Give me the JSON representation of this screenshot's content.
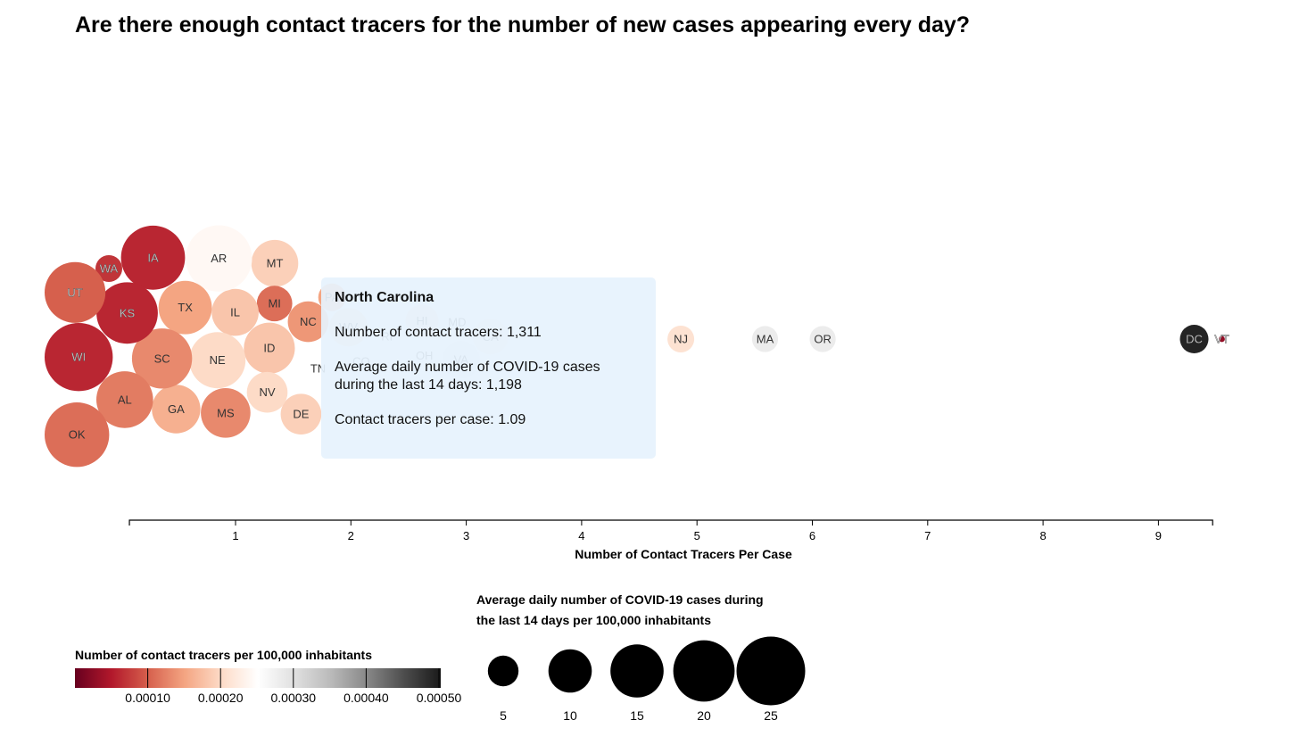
{
  "title": "Are there enough contact tracers for the number of new cases appearing every day?",
  "colors": {
    "scale": [
      "#67001f",
      "#b2182b",
      "#d6604d",
      "#f4a582",
      "#fddbc7",
      "#ffffff",
      "#e0e0e0",
      "#bababa",
      "#878787",
      "#4d4d4d",
      "#1a1a1a"
    ],
    "tooltip_bg": "#e6f2fd"
  },
  "chart_data": {
    "type": "scatter",
    "encoding": "beeswarm bubble chart: x = contact tracers per case, radius = average daily COVID-19 cases per 100,000 inhabitants (last 14 days), fill = contact tracers per 100,000 inhabitants",
    "xlabel": "Number of Contact Tracers Per Case",
    "x_ticks": [
      1,
      2,
      3,
      4,
      5,
      6,
      7,
      8,
      9
    ],
    "xlim": [
      0.08,
      9.47
    ],
    "points": [
      {
        "state": "DC",
        "x": 9.31,
        "cases_per_100k": 4.3,
        "tracers_per_100k": 0.00049
      },
      {
        "state": "VT",
        "x": 9.55,
        "cases_per_100k": 0.2,
        "tracers_per_100k": 3e-05
      },
      {
        "state": "OR",
        "x": 6.09,
        "cases_per_100k": 3.6,
        "tracers_per_100k": 0.00028
      },
      {
        "state": "MA",
        "x": 5.59,
        "cases_per_100k": 3.6,
        "tracers_per_100k": 0.00028
      },
      {
        "state": "NJ",
        "x": 4.86,
        "cases_per_100k": 3.8,
        "tracers_per_100k": 0.00021
      },
      {
        "state": "VA",
        "x": 2.92,
        "cases_per_100k": 7.5,
        "tracers_per_100k": 0.00028
      },
      {
        "state": "CA",
        "x": 3.13,
        "cases_per_100k": 6.7,
        "tracers_per_100k": 0.00022
      },
      {
        "state": "MD",
        "x": 2.94,
        "cases_per_100k": 6.7,
        "tracers_per_100k": 0.00024
      },
      {
        "state": "HI",
        "x": 2.65,
        "cases_per_100k": 5.8,
        "tracers_per_100k": 0.00021
      },
      {
        "state": "OH",
        "x": 2.7,
        "cases_per_100k": 6.3,
        "tracers_per_100k": 0.00027
      },
      {
        "state": "WV",
        "x": 2.0,
        "cases_per_100k": 7.9,
        "tracers_per_100k": 0.0002
      },
      {
        "state": "RI",
        "x": 2.26,
        "cases_per_100k": 7.9,
        "tracers_per_100k": 0.00026
      },
      {
        "state": "CO",
        "x": 1.96,
        "cases_per_100k": 5.8,
        "tracers_per_100k": 0.00025
      },
      {
        "state": "PA",
        "x": 1.79,
        "cases_per_100k": 4.0,
        "tracers_per_100k": 0.00015
      },
      {
        "state": "NC",
        "x": 1.64,
        "cases_per_100k": 8.8,
        "tracers_per_100k": 0.00014
      },
      {
        "state": "TN",
        "x": 1.63,
        "cases_per_100k": 15.9,
        "tracers_per_100k": 0.00025
      },
      {
        "state": "DE",
        "x": 1.51,
        "cases_per_100k": 8.8,
        "tracers_per_100k": 0.00019
      },
      {
        "state": "MT",
        "x": 1.19,
        "cases_per_100k": 11.7,
        "tracers_per_100k": 0.00019
      },
      {
        "state": "ID",
        "x": 1.25,
        "cases_per_100k": 13.8,
        "tracers_per_100k": 0.00018
      },
      {
        "state": "NV",
        "x": 1.29,
        "cases_per_100k": 8.8,
        "tracers_per_100k": 0.0002
      },
      {
        "state": "MI",
        "x": 1.24,
        "cases_per_100k": 6.7,
        "tracers_per_100k": 0.00011
      },
      {
        "state": "IL",
        "x": 0.92,
        "cases_per_100k": 11.7,
        "tracers_per_100k": 0.00018
      },
      {
        "state": "MS",
        "x": 0.99,
        "cases_per_100k": 13.0,
        "tracers_per_100k": 0.00013
      },
      {
        "state": "AR",
        "x": 0.72,
        "cases_per_100k": 23.4,
        "tracers_per_100k": 0.00024
      },
      {
        "state": "NE",
        "x": 0.7,
        "cases_per_100k": 16.7,
        "tracers_per_100k": 0.0002
      },
      {
        "state": "GA",
        "x": 0.35,
        "cases_per_100k": 12.5,
        "tracers_per_100k": 0.00016
      },
      {
        "state": "IA",
        "x": 0.53,
        "cases_per_100k": 21.7,
        "tracers_per_100k": 6e-05
      },
      {
        "state": "TX",
        "x": 0.56,
        "cases_per_100k": 15.1,
        "tracers_per_100k": 0.00015
      },
      {
        "state": "SC",
        "x": 0.1,
        "cases_per_100k": 19.2,
        "tracers_per_100k": 0.00013
      },
      {
        "state": "AL",
        "x": -0.11,
        "cases_per_100k": 17.1,
        "tracers_per_100k": 0.00012
      },
      {
        "state": "WA",
        "x": -0.25,
        "cases_per_100k": 3.8,
        "tracers_per_100k": 7e-05
      },
      {
        "state": "KS",
        "x": -0.28,
        "cases_per_100k": 20.0,
        "tracers_per_100k": 6e-05
      },
      {
        "state": "OK",
        "x": -0.44,
        "cases_per_100k": 22.1,
        "tracers_per_100k": 0.00011
      },
      {
        "state": "UT",
        "x": -0.62,
        "cases_per_100k": 19.6,
        "tracers_per_100k": 0.0001
      },
      {
        "state": "WI",
        "x": -0.26,
        "cases_per_100k": 24.6,
        "tracers_per_100k": 6e-05
      }
    ],
    "color_legend": {
      "title": "Number of contact tracers per 100,000 inhabitants",
      "ticks": [
        "0.00010",
        "0.00020",
        "0.00030",
        "0.00040",
        "0.00050"
      ],
      "domain": [
        0,
        0.0005
      ]
    },
    "size_legend": {
      "title_line1": "Average daily number of COVID-19 cases during",
      "title_line2": "the last 14 days per 100,000 inhabitants",
      "values": [
        5,
        10,
        15,
        20,
        25
      ]
    }
  },
  "tooltip": {
    "title": "North Carolina",
    "line1": "Number of contact tracers: 1,311",
    "line2a": "Average daily number of COVID-19 cases",
    "line2b": "during the last 14 days: 1,198",
    "line3": "Contact tracers per case: 1.09"
  }
}
